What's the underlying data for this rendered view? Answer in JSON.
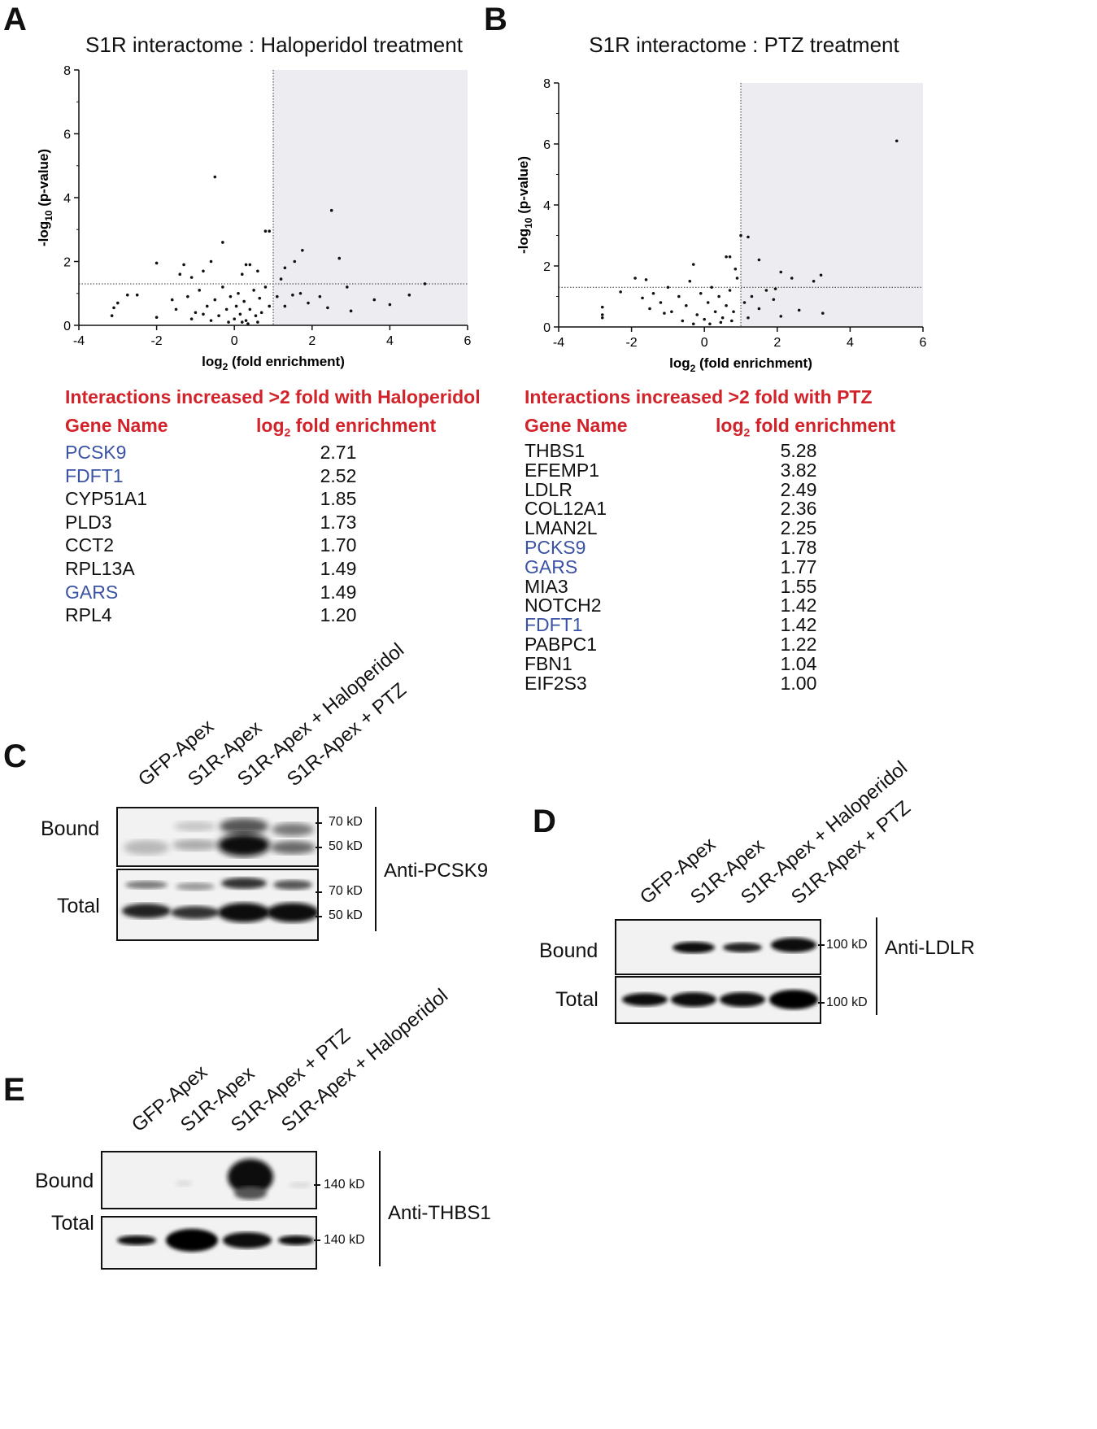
{
  "panels": {
    "A": {
      "letter": "A",
      "title": "S1R interactome : Haloperidol treatment",
      "table": {
        "heading": "Interactions increased >2 fold with Haloperidol",
        "col_gene": "Gene Name",
        "col_value": "log2 fold enrichment",
        "rows": [
          {
            "gene": "PCSK9",
            "value": "2.71",
            "highlight": true
          },
          {
            "gene": "FDFT1",
            "value": "2.52",
            "highlight": true
          },
          {
            "gene": "CYP51A1",
            "value": "1.85",
            "highlight": false
          },
          {
            "gene": "PLD3",
            "value": "1.73",
            "highlight": false
          },
          {
            "gene": "CCT2",
            "value": "1.70",
            "highlight": false
          },
          {
            "gene": "RPL13A",
            "value": "1.49",
            "highlight": false
          },
          {
            "gene": "GARS",
            "value": "1.49",
            "highlight": true
          },
          {
            "gene": "RPL4",
            "value": "1.20",
            "highlight": false
          }
        ]
      }
    },
    "B": {
      "letter": "B",
      "title": "S1R interactome : PTZ treatment",
      "table": {
        "heading": "Interactions increased >2 fold with PTZ",
        "col_gene": "Gene Name",
        "col_value": "log2 fold enrichment",
        "rows": [
          {
            "gene": "THBS1",
            "value": "5.28",
            "highlight": false
          },
          {
            "gene": "EFEMP1",
            "value": "3.82",
            "highlight": false
          },
          {
            "gene": "LDLR",
            "value": "2.49",
            "highlight": false
          },
          {
            "gene": "COL12A1",
            "value": "2.36",
            "highlight": false
          },
          {
            "gene": "LMAN2L",
            "value": "2.25",
            "highlight": false
          },
          {
            "gene": "PCKS9",
            "value": "1.78",
            "highlight": true
          },
          {
            "gene": "GARS",
            "value": "1.77",
            "highlight": true
          },
          {
            "gene": "MIA3",
            "value": "1.55",
            "highlight": false
          },
          {
            "gene": "NOTCH2",
            "value": "1.42",
            "highlight": false
          },
          {
            "gene": "FDFT1",
            "value": "1.42",
            "highlight": true
          },
          {
            "gene": "PABPC1",
            "value": "1.22",
            "highlight": false
          },
          {
            "gene": "FBN1",
            "value": "1.04",
            "highlight": false
          },
          {
            "gene": "EIF2S3",
            "value": "1.00",
            "highlight": false
          }
        ]
      }
    },
    "C": {
      "letter": "C",
      "lanes": [
        "GFP-Apex",
        "S1R-Apex",
        "S1R-Apex + Haloperidol",
        "S1R-Apex + PTZ"
      ],
      "rows": [
        "Bound",
        "Total"
      ],
      "markers_bound": [
        "70 kD",
        "50 kD"
      ],
      "markers_total": [
        "70 kD",
        "50 kD"
      ],
      "antibody": "Anti-PCSK9"
    },
    "D": {
      "letter": "D",
      "lanes": [
        "GFP-Apex",
        "S1R-Apex",
        "S1R-Apex + Haloperidol",
        "S1R-Apex + PTZ"
      ],
      "rows": [
        "Bound",
        "Total"
      ],
      "markers_bound": [
        "100 kD"
      ],
      "markers_total": [
        "100 kD"
      ],
      "antibody": "Anti-LDLR"
    },
    "E": {
      "letter": "E",
      "lanes": [
        "GFP-Apex",
        "S1R-Apex",
        "S1R-Apex + PTZ",
        "S1R-Apex + Haloperidol"
      ],
      "rows": [
        "Bound",
        "Total"
      ],
      "markers_bound": [
        "140 kD"
      ],
      "markers_total": [
        "140 kD"
      ],
      "antibody": "Anti-THBS1"
    }
  },
  "chart_data": [
    {
      "type": "scatter",
      "title": "S1R interactome : Haloperidol treatment",
      "xlabel": "log2 (fold enrichment)",
      "ylabel": "-log10 (p-value)",
      "xlim": [
        -4,
        6
      ],
      "ylim": [
        0,
        8
      ],
      "xticks": [
        "-4",
        "-2",
        "0",
        "2",
        "4",
        "6"
      ],
      "yticks": [
        "0",
        "2",
        "4",
        "6",
        "8"
      ],
      "thresholds": {
        "x": 1,
        "y": 1.3
      },
      "highlight_region": "x > 1",
      "points": [
        [
          -0.5,
          4.65
        ],
        [
          2.5,
          3.6
        ],
        [
          -0.3,
          2.6
        ],
        [
          0.8,
          2.95
        ],
        [
          0.9,
          2.95
        ],
        [
          1.75,
          2.35
        ],
        [
          2.7,
          2.1
        ],
        [
          1.55,
          2.0
        ],
        [
          -2.0,
          1.95
        ],
        [
          -1.3,
          1.9
        ],
        [
          -0.6,
          2.0
        ],
        [
          0.3,
          1.9
        ],
        [
          0.4,
          1.9
        ],
        [
          1.3,
          1.8
        ],
        [
          -1.4,
          1.6
        ],
        [
          -1.1,
          1.5
        ],
        [
          -0.8,
          1.7
        ],
        [
          0.2,
          1.6
        ],
        [
          0.6,
          1.7
        ],
        [
          1.2,
          1.45
        ],
        [
          2.9,
          1.2
        ],
        [
          3.6,
          0.8
        ],
        [
          4.0,
          0.65
        ],
        [
          4.5,
          0.95
        ],
        [
          4.9,
          1.3
        ],
        [
          3.0,
          0.45
        ],
        [
          -3.15,
          0.3
        ],
        [
          -3.1,
          0.55
        ],
        [
          -3.0,
          0.7
        ],
        [
          -2.75,
          0.95
        ],
        [
          -2.5,
          0.95
        ],
        [
          -2.0,
          0.25
        ],
        [
          -1.6,
          0.8
        ],
        [
          -1.5,
          0.5
        ],
        [
          -1.2,
          0.9
        ],
        [
          -1.0,
          0.4
        ],
        [
          -0.9,
          1.1
        ],
        [
          -0.7,
          0.6
        ],
        [
          -0.5,
          0.8
        ],
        [
          -0.4,
          0.3
        ],
        [
          -0.3,
          1.2
        ],
        [
          -0.2,
          0.5
        ],
        [
          -0.1,
          0.9
        ],
        [
          0.0,
          0.2
        ],
        [
          0.05,
          0.6
        ],
        [
          0.1,
          1.0
        ],
        [
          0.15,
          0.35
        ],
        [
          0.25,
          0.75
        ],
        [
          0.3,
          0.15
        ],
        [
          0.4,
          0.5
        ],
        [
          0.5,
          1.1
        ],
        [
          0.55,
          0.3
        ],
        [
          0.65,
          0.85
        ],
        [
          0.7,
          0.4
        ],
        [
          0.8,
          1.2
        ],
        [
          0.9,
          0.6
        ],
        [
          1.1,
          0.9
        ],
        [
          1.3,
          0.6
        ],
        [
          1.5,
          0.95
        ],
        [
          1.7,
          1.0
        ],
        [
          1.9,
          0.7
        ],
        [
          2.2,
          0.9
        ],
        [
          2.4,
          0.55
        ],
        [
          -0.6,
          0.15
        ],
        [
          -0.8,
          0.35
        ],
        [
          -1.1,
          0.2
        ],
        [
          0.2,
          0.1
        ],
        [
          0.35,
          0.05
        ],
        [
          -0.15,
          0.1
        ],
        [
          0.6,
          0.1
        ]
      ]
    },
    {
      "type": "scatter",
      "title": "S1R interactome : PTZ treatment",
      "xlabel": "log2 (fold enrichment)",
      "ylabel": "-log10 (p-value)",
      "xlim": [
        -4,
        6
      ],
      "ylim": [
        0,
        8
      ],
      "xticks": [
        "-4",
        "-2",
        "0",
        "2",
        "4",
        "6"
      ],
      "yticks": [
        "0",
        "2",
        "4",
        "6",
        "8"
      ],
      "thresholds": {
        "x": 1,
        "y": 1.3
      },
      "highlight_region": "x > 1",
      "points": [
        [
          5.28,
          6.1
        ],
        [
          1.0,
          3.0
        ],
        [
          1.2,
          2.95
        ],
        [
          1.5,
          2.2
        ],
        [
          0.6,
          2.3
        ],
        [
          0.7,
          2.3
        ],
        [
          -0.3,
          2.05
        ],
        [
          0.85,
          1.9
        ],
        [
          2.1,
          1.8
        ],
        [
          3.2,
          1.7
        ],
        [
          3.0,
          1.5
        ],
        [
          2.4,
          1.6
        ],
        [
          1.95,
          1.25
        ],
        [
          -2.8,
          0.65
        ],
        [
          -2.8,
          0.4
        ],
        [
          -2.8,
          0.3
        ],
        [
          -2.3,
          1.15
        ],
        [
          -1.9,
          1.6
        ],
        [
          -1.6,
          1.55
        ],
        [
          -1.4,
          1.1
        ],
        [
          -1.2,
          0.8
        ],
        [
          -1.0,
          1.3
        ],
        [
          -0.9,
          0.5
        ],
        [
          -0.7,
          1.0
        ],
        [
          -0.5,
          0.7
        ],
        [
          -0.4,
          1.5
        ],
        [
          -0.2,
          0.4
        ],
        [
          -0.1,
          1.1
        ],
        [
          0.0,
          0.25
        ],
        [
          0.1,
          0.8
        ],
        [
          0.2,
          1.3
        ],
        [
          0.3,
          0.5
        ],
        [
          0.4,
          1.0
        ],
        [
          0.5,
          0.3
        ],
        [
          0.6,
          0.7
        ],
        [
          0.7,
          1.2
        ],
        [
          0.8,
          0.5
        ],
        [
          0.9,
          1.6
        ],
        [
          1.1,
          0.8
        ],
        [
          1.3,
          1.0
        ],
        [
          1.5,
          0.6
        ],
        [
          1.7,
          1.2
        ],
        [
          1.9,
          0.9
        ],
        [
          2.1,
          0.35
        ],
        [
          2.6,
          0.55
        ],
        [
          3.25,
          0.45
        ],
        [
          -1.7,
          0.95
        ],
        [
          -1.5,
          0.6
        ],
        [
          -0.6,
          0.2
        ],
        [
          0.15,
          0.1
        ],
        [
          0.45,
          0.15
        ],
        [
          -0.3,
          0.1
        ],
        [
          0.75,
          0.2
        ],
        [
          -1.1,
          0.45
        ],
        [
          1.2,
          0.3
        ]
      ]
    }
  ]
}
